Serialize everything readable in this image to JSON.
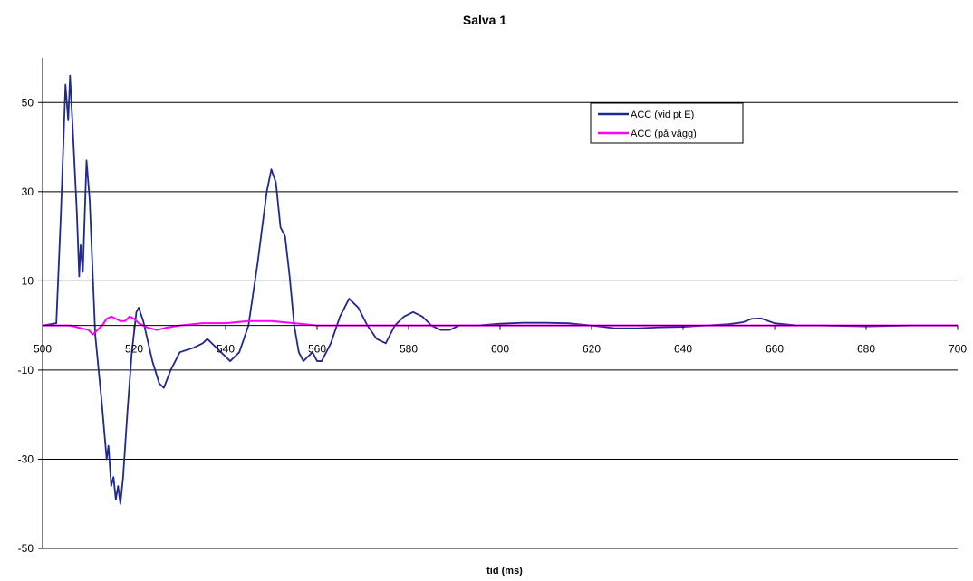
{
  "chart_data": {
    "type": "line",
    "title": "Salva 1",
    "xlabel": "tid (ms)",
    "ylabel": "",
    "xlim": [
      500,
      700
    ],
    "ylim": [
      -50,
      60
    ],
    "xticks": [
      500,
      520,
      540,
      560,
      580,
      600,
      620,
      640,
      660,
      680,
      700
    ],
    "yticks": [
      50,
      30,
      10,
      -10,
      -30,
      -50
    ],
    "grid": {
      "horizontal": true,
      "vertical": false
    },
    "legend_position": "top-right",
    "series": [
      {
        "name": "ACC (vid pt E)",
        "color": "#1f2a8a",
        "points": [
          [
            500,
            0
          ],
          [
            503,
            0.5
          ],
          [
            504,
            25
          ],
          [
            505,
            54
          ],
          [
            505.6,
            46
          ],
          [
            506,
            56
          ],
          [
            506.6,
            44
          ],
          [
            507.5,
            25
          ],
          [
            508,
            11
          ],
          [
            508.3,
            18
          ],
          [
            508.8,
            12
          ],
          [
            509.6,
            37
          ],
          [
            510.3,
            28
          ],
          [
            511.5,
            -2
          ],
          [
            513,
            -18
          ],
          [
            514,
            -30
          ],
          [
            514.4,
            -27
          ],
          [
            515,
            -36
          ],
          [
            515.5,
            -34
          ],
          [
            516,
            -39
          ],
          [
            516.5,
            -36
          ],
          [
            517,
            -40
          ],
          [
            517.6,
            -34
          ],
          [
            518.5,
            -20
          ],
          [
            519.5,
            -6
          ],
          [
            520.5,
            3
          ],
          [
            521,
            4
          ],
          [
            522,
            1
          ],
          [
            524,
            -8
          ],
          [
            525.5,
            -13
          ],
          [
            526.5,
            -14
          ],
          [
            528,
            -10
          ],
          [
            530,
            -6
          ],
          [
            533,
            -5
          ],
          [
            535,
            -4
          ],
          [
            536,
            -3
          ],
          [
            537,
            -4
          ],
          [
            539,
            -6
          ],
          [
            541,
            -8
          ],
          [
            543,
            -6
          ],
          [
            545,
            0
          ],
          [
            547,
            14
          ],
          [
            549,
            30
          ],
          [
            550,
            35
          ],
          [
            551,
            32
          ],
          [
            552,
            22
          ],
          [
            553,
            20
          ],
          [
            554,
            11
          ],
          [
            555,
            0
          ],
          [
            556,
            -6
          ],
          [
            557,
            -8
          ],
          [
            558,
            -7
          ],
          [
            559,
            -6
          ],
          [
            560,
            -8
          ],
          [
            561,
            -8
          ],
          [
            563,
            -4
          ],
          [
            565,
            2
          ],
          [
            567,
            6
          ],
          [
            569,
            4
          ],
          [
            571,
            0
          ],
          [
            573,
            -3
          ],
          [
            575,
            -4
          ],
          [
            577,
            0
          ],
          [
            579,
            2
          ],
          [
            581,
            3
          ],
          [
            583,
            2
          ],
          [
            585,
            0
          ],
          [
            587,
            -1
          ],
          [
            589,
            -1
          ],
          [
            591,
            0
          ],
          [
            595,
            0
          ],
          [
            600,
            0.4
          ],
          [
            605,
            0.6
          ],
          [
            610,
            0.6
          ],
          [
            615,
            0.5
          ],
          [
            620,
            0
          ],
          [
            625,
            -0.6
          ],
          [
            630,
            -0.6
          ],
          [
            635,
            -0.4
          ],
          [
            640,
            -0.3
          ],
          [
            645,
            0
          ],
          [
            650,
            0.3
          ],
          [
            653,
            0.7
          ],
          [
            655,
            1.5
          ],
          [
            657,
            1.6
          ],
          [
            660,
            0.5
          ],
          [
            665,
            0
          ],
          [
            670,
            0
          ],
          [
            680,
            -0.2
          ],
          [
            690,
            0
          ],
          [
            700,
            0
          ]
        ]
      },
      {
        "name": "ACC (på vägg)",
        "color": "#ff00ff",
        "points": [
          [
            500,
            0
          ],
          [
            506,
            0
          ],
          [
            508,
            -0.5
          ],
          [
            510,
            -1
          ],
          [
            511,
            -2
          ],
          [
            512,
            -1
          ],
          [
            513,
            0
          ],
          [
            514,
            1.5
          ],
          [
            515,
            2
          ],
          [
            516,
            1.5
          ],
          [
            517,
            1
          ],
          [
            518,
            1
          ],
          [
            519,
            2
          ],
          [
            520,
            1.5
          ],
          [
            521,
            0.5
          ],
          [
            523,
            -0.5
          ],
          [
            525,
            -1
          ],
          [
            527,
            -0.5
          ],
          [
            530,
            0
          ],
          [
            535,
            0.5
          ],
          [
            540,
            0.5
          ],
          [
            545,
            1
          ],
          [
            550,
            1
          ],
          [
            555,
            0.5
          ],
          [
            560,
            0
          ],
          [
            570,
            0
          ],
          [
            580,
            0
          ],
          [
            590,
            0
          ],
          [
            600,
            0
          ],
          [
            620,
            0
          ],
          [
            640,
            0
          ],
          [
            660,
            0
          ],
          [
            680,
            0
          ],
          [
            700,
            0
          ]
        ]
      }
    ]
  }
}
